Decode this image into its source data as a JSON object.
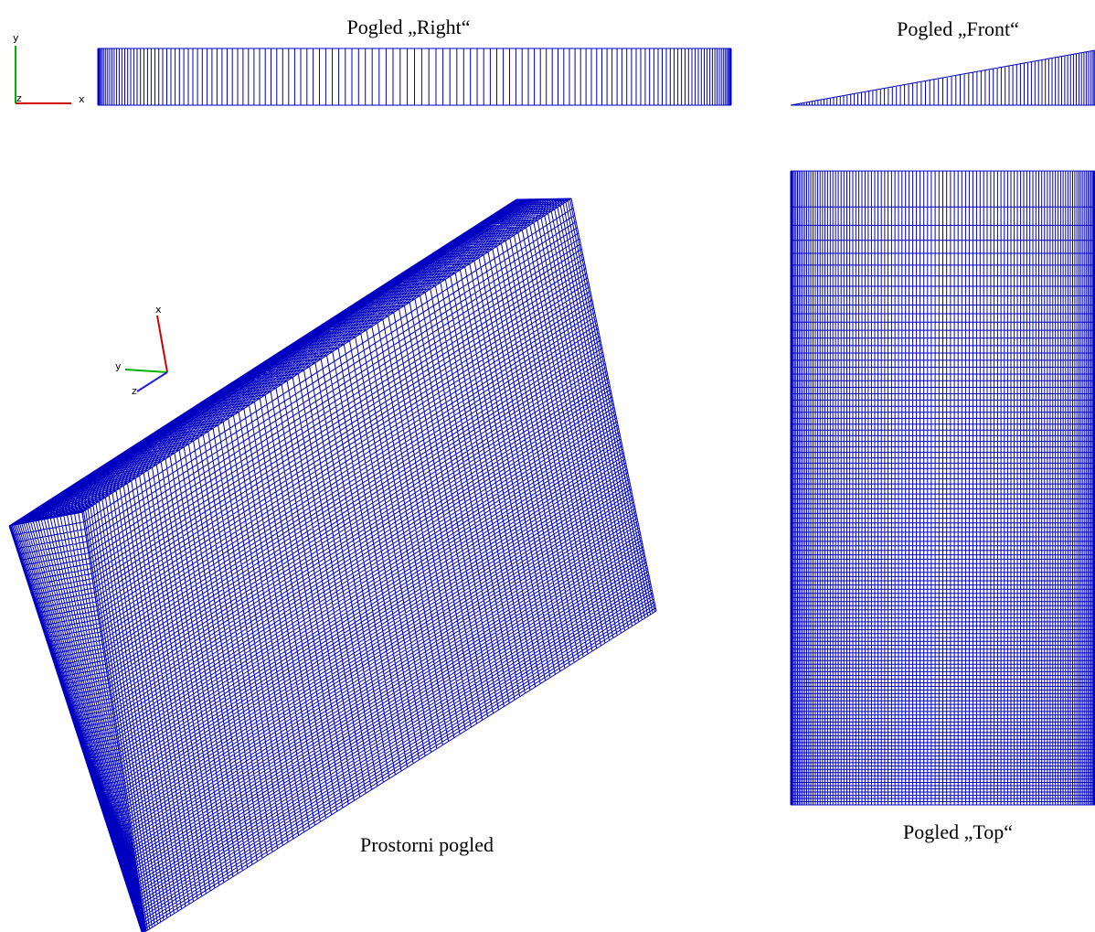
{
  "views": {
    "right": {
      "title": "Pogled „Right“"
    },
    "front": {
      "title": "Pogled „Front“"
    },
    "perspective": {
      "title": "Prostorni pogled"
    },
    "top": {
      "title": "Pogled „Top“"
    }
  },
  "triads": [
    {
      "labels": [
        "y",
        "x",
        "z"
      ]
    },
    {
      "labels": [
        "x",
        "y",
        "z"
      ]
    }
  ]
}
